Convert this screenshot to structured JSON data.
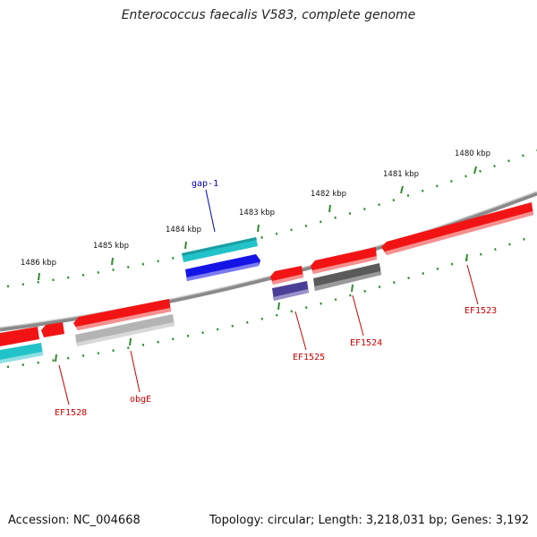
{
  "header": {
    "title": "Enterococcus faecalis V583, complete genome"
  },
  "footer": {
    "accession": "Accession: NC_004668",
    "stats": "Topology: circular; Length: 3,218,031 bp; Genes: 3,192"
  },
  "ruler": {
    "ticks": [
      "1480 kbp",
      "1481 kbp",
      "1482 kbp",
      "1483 kbp",
      "1484 kbp",
      "1485 kbp",
      "1486 kbp"
    ]
  },
  "genes": {
    "gap1": "gap-1",
    "ef1523": "EF1523",
    "ef1524": "EF1524",
    "ef1525": "EF1525",
    "obgE": "obgE",
    "ef1528": "EF1528"
  },
  "colors": {
    "cyan": "#22c3c8",
    "blue": "#1414e6",
    "red": "#f21414",
    "purple": "#4a3f96",
    "dark_grey": "#5a5a5a",
    "light_grey": "#b4b4b4",
    "tick_green": "#2e8b2e",
    "label_red": "#cc0000",
    "label_blue": "#0000bb"
  }
}
